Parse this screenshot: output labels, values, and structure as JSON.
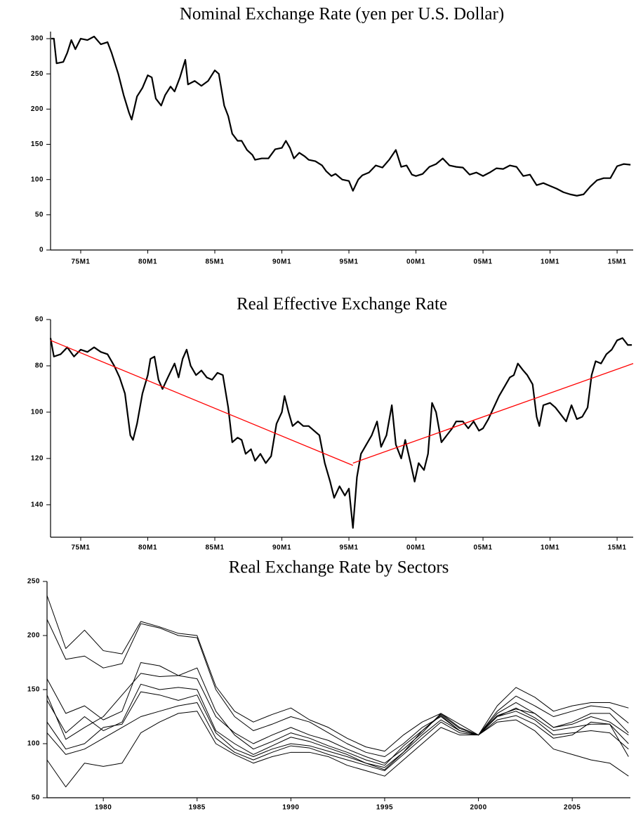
{
  "chart_data": [
    {
      "type": "line",
      "title": "Nominal Exchange Rate (yen per U.S. Dollar)",
      "color": "#000000",
      "x": [
        1972.8,
        1973.0,
        1973.2,
        1973.7,
        1974.0,
        1974.3,
        1974.6,
        1975.0,
        1975.5,
        1976.0,
        1976.5,
        1977.0,
        1977.3,
        1977.8,
        1978.2,
        1978.6,
        1978.8,
        1979.2,
        1979.6,
        1980.0,
        1980.3,
        1980.6,
        1981.0,
        1981.3,
        1981.7,
        1982.0,
        1982.4,
        1982.8,
        1983.0,
        1983.5,
        1984.0,
        1984.5,
        1985.0,
        1985.3,
        1985.7,
        1986.0,
        1986.3,
        1986.7,
        1987.0,
        1987.4,
        1987.8,
        1988.0,
        1988.5,
        1989.0,
        1989.5,
        1990.0,
        1990.3,
        1990.6,
        1990.9,
        1991.3,
        1991.7,
        1992.0,
        1992.5,
        1993.0,
        1993.3,
        1993.7,
        1994.0,
        1994.5,
        1995.0,
        1995.3,
        1995.7,
        1996.0,
        1996.5,
        1997.0,
        1997.5,
        1998.0,
        1998.5,
        1998.9,
        1999.3,
        1999.7,
        2000.0,
        2000.5,
        2001.0,
        2001.5,
        2002.0,
        2002.5,
        2003.0,
        2003.5,
        2004.0,
        2004.5,
        2005.0,
        2005.5,
        2006.0,
        2006.5,
        2007.0,
        2007.5,
        2008.0,
        2008.5,
        2009.0,
        2009.5,
        2010.0,
        2010.5,
        2011.0,
        2011.5,
        2012.0,
        2012.5,
        2013.0,
        2013.5,
        2014.0,
        2014.5,
        2015.0,
        2015.5,
        2016.0
      ],
      "values": [
        300,
        300,
        265,
        267,
        280,
        298,
        285,
        300,
        298,
        303,
        292,
        295,
        280,
        250,
        220,
        195,
        185,
        218,
        230,
        248,
        245,
        215,
        205,
        220,
        232,
        225,
        245,
        270,
        235,
        240,
        233,
        240,
        255,
        250,
        205,
        190,
        165,
        155,
        155,
        142,
        135,
        128,
        130,
        130,
        143,
        145,
        155,
        145,
        130,
        138,
        133,
        128,
        126,
        120,
        112,
        105,
        108,
        100,
        98,
        84,
        100,
        106,
        110,
        120,
        117,
        128,
        142,
        118,
        120,
        107,
        105,
        108,
        118,
        122,
        130,
        120,
        118,
        117,
        107,
        110,
        105,
        110,
        116,
        115,
        120,
        118,
        105,
        107,
        92,
        95,
        91,
        87,
        82,
        79,
        77,
        79,
        90,
        99,
        102,
        102,
        119,
        122,
        121
      ],
      "xlim": [
        1972.75,
        2016.2
      ],
      "xticks": [
        {
          "value": 1975,
          "label": "75M1"
        },
        {
          "value": 1980,
          "label": "80M1"
        },
        {
          "value": 1985,
          "label": "85M1"
        },
        {
          "value": 1990,
          "label": "90M1"
        },
        {
          "value": 1995,
          "label": "95M1"
        },
        {
          "value": 2000,
          "label": "00M1"
        },
        {
          "value": 2005,
          "label": "05M1"
        },
        {
          "value": 2010,
          "label": "10M1"
        },
        {
          "value": 2015,
          "label": "15M1"
        }
      ],
      "ylim": [
        0,
        310
      ],
      "yticks": [
        0,
        50,
        100,
        150,
        200,
        250,
        300
      ]
    },
    {
      "type": "line",
      "title": "Real Effective Exchange Rate",
      "y_inverted": true,
      "series": [
        {
          "color": "#000000",
          "x": [
            1972.75,
            1973.0,
            1973.5,
            1974.0,
            1974.5,
            1975.0,
            1975.5,
            1976.0,
            1976.5,
            1977.0,
            1977.5,
            1977.9,
            1978.3,
            1978.7,
            1978.9,
            1979.2,
            1979.6,
            1980.0,
            1980.2,
            1980.5,
            1980.8,
            1981.1,
            1981.5,
            1982.0,
            1982.3,
            1982.6,
            1982.9,
            1983.2,
            1983.6,
            1984.0,
            1984.4,
            1984.8,
            1985.2,
            1985.6,
            1986.0,
            1986.3,
            1986.7,
            1987.0,
            1987.3,
            1987.7,
            1988.0,
            1988.4,
            1988.8,
            1989.2,
            1989.6,
            1990.0,
            1990.2,
            1990.5,
            1990.8,
            1991.2,
            1991.6,
            1992.0,
            1992.4,
            1992.8,
            1993.2,
            1993.6,
            1993.9,
            1994.3,
            1994.7,
            1995.0,
            1995.3,
            1995.6,
            1995.9,
            1996.3,
            1996.7,
            1997.1,
            1997.4,
            1997.8,
            1998.2,
            1998.5,
            1998.9,
            1999.2,
            1999.6,
            1999.9,
            2000.2,
            2000.6,
            2000.9,
            2001.2,
            2001.5,
            2001.9,
            2002.3,
            2002.7,
            2003.0,
            2003.5,
            2003.9,
            2004.3,
            2004.7,
            2005.0,
            2005.4,
            2005.8,
            2006.2,
            2006.6,
            2007.0,
            2007.3,
            2007.6,
            2008.0,
            2008.3,
            2008.7,
            2009.0,
            2009.2,
            2009.5,
            2010.0,
            2010.4,
            2010.8,
            2011.2,
            2011.6,
            2012.0,
            2012.4,
            2012.8,
            2013.1,
            2013.4,
            2013.8,
            2014.2,
            2014.6,
            2015.0,
            2015.4,
            2015.8,
            2016.1
          ],
          "values": [
            68,
            76,
            75,
            72,
            76,
            73,
            74,
            72,
            74,
            75,
            80,
            85,
            92,
            110,
            112,
            105,
            92,
            84,
            77,
            76,
            86,
            90,
            85,
            79,
            85,
            77,
            73,
            80,
            84,
            82,
            85,
            86,
            83,
            84,
            98,
            113,
            111,
            112,
            118,
            116,
            121,
            118,
            122,
            119,
            105,
            100,
            93,
            100,
            106,
            104,
            106,
            106,
            108,
            110,
            122,
            130,
            137,
            132,
            136,
            133,
            150,
            128,
            118,
            114,
            110,
            104,
            115,
            110,
            97,
            114,
            120,
            112,
            122,
            130,
            122,
            125,
            118,
            96,
            100,
            113,
            110,
            107,
            104,
            104,
            107,
            104,
            108,
            107,
            103,
            98,
            93,
            89,
            85,
            84,
            79,
            82,
            84,
            88,
            102,
            106,
            97,
            96,
            98,
            101,
            104,
            97,
            103,
            102,
            98,
            84,
            78,
            79,
            75,
            73,
            69,
            68,
            71,
            71
          ]
        },
        {
          "color": "#ff0000",
          "x": [
            1972.75,
            1995.3
          ],
          "values": [
            69,
            123
          ]
        },
        {
          "color": "#ff0000",
          "x": [
            1995.3,
            2016.2
          ],
          "values": [
            122,
            79
          ]
        }
      ],
      "xlim": [
        1972.75,
        2016.2
      ],
      "xticks": [
        {
          "value": 1975,
          "label": "75M1"
        },
        {
          "value": 1980,
          "label": "80M1"
        },
        {
          "value": 1985,
          "label": "85M1"
        },
        {
          "value": 1990,
          "label": "90M1"
        },
        {
          "value": 1995,
          "label": "95M1"
        },
        {
          "value": 2000,
          "label": "00M1"
        },
        {
          "value": 2005,
          "label": "05M1"
        },
        {
          "value": 2010,
          "label": "10M1"
        },
        {
          "value": 2015,
          "label": "15M1"
        }
      ],
      "ylim": [
        60,
        154
      ],
      "yticks": [
        60,
        80,
        100,
        120,
        140
      ]
    },
    {
      "type": "line",
      "title": "Real Exchange Rate by Sectors",
      "x": [
        1977,
        1978,
        1979,
        1980,
        1981,
        1982,
        1983,
        1984,
        1985,
        1986,
        1987,
        1988,
        1989,
        1990,
        1991,
        1992,
        1993,
        1994,
        1995,
        1996,
        1997,
        1998,
        1999,
        2000,
        2001,
        2002,
        2003,
        2004,
        2005,
        2006,
        2007,
        2008
      ],
      "series": [
        {
          "color": "#000000",
          "values": [
            237,
            188,
            205,
            186,
            183,
            213,
            208,
            202,
            200,
            153,
            130,
            120,
            127,
            133,
            122,
            115,
            105,
            97,
            93,
            108,
            120,
            128,
            118,
            108,
            135,
            152,
            143,
            130,
            135,
            138,
            138,
            133
          ]
        },
        {
          "color": "#000000",
          "values": [
            215,
            178,
            181,
            170,
            174,
            211,
            207,
            200,
            198,
            150,
            125,
            112,
            118,
            125,
            120,
            110,
            100,
            92,
            88,
            100,
            115,
            125,
            112,
            108,
            130,
            144,
            135,
            125,
            130,
            135,
            133,
            119
          ]
        },
        {
          "color": "#000000",
          "values": [
            160,
            128,
            135,
            122,
            130,
            175,
            172,
            163,
            160,
            125,
            110,
            100,
            108,
            115,
            108,
            103,
            95,
            88,
            82,
            95,
            110,
            128,
            115,
            108,
            128,
            138,
            128,
            115,
            118,
            125,
            120,
            108
          ]
        },
        {
          "color": "#000000",
          "values": [
            145,
            104,
            115,
            125,
            145,
            165,
            162,
            163,
            170,
            130,
            108,
            95,
            102,
            110,
            105,
            98,
            92,
            85,
            80,
            98,
            112,
            127,
            114,
            108,
            125,
            133,
            124,
            112,
            115,
            118,
            118,
            100
          ]
        },
        {
          "color": "#000000",
          "values": [
            120,
            95,
            100,
            115,
            118,
            148,
            145,
            140,
            145,
            110,
            95,
            88,
            95,
            100,
            98,
            93,
            88,
            82,
            78,
            92,
            108,
            122,
            112,
            108,
            125,
            130,
            122,
            108,
            110,
            112,
            110,
            95
          ]
        },
        {
          "color": "#000000",
          "values": [
            110,
            90,
            95,
            105,
            115,
            125,
            130,
            135,
            138,
            105,
            92,
            85,
            92,
            98,
            96,
            90,
            85,
            80,
            75,
            90,
            105,
            120,
            110,
            108,
            122,
            126,
            118,
            105,
            108,
            120,
            118,
            88
          ]
        },
        {
          "color": "#000000",
          "values": [
            85,
            60,
            82,
            79,
            82,
            110,
            120,
            128,
            130,
            100,
            90,
            82,
            88,
            92,
            92,
            88,
            80,
            75,
            70,
            85,
            100,
            115,
            108,
            108,
            120,
            122,
            112,
            95,
            90,
            85,
            82,
            70
          ]
        },
        {
          "color": "#000000",
          "values": [
            140,
            110,
            125,
            112,
            120,
            155,
            150,
            152,
            150,
            112,
            100,
            90,
            98,
            106,
            102,
            96,
            90,
            82,
            76,
            92,
            112,
            126,
            112,
            108,
            126,
            132,
            128,
            115,
            120,
            128,
            128,
            110
          ]
        }
      ],
      "xlim": [
        1977,
        2008.1
      ],
      "xticks": [
        1980,
        1985,
        1990,
        1995,
        2000,
        2005
      ],
      "ylim": [
        50,
        250
      ],
      "yticks": [
        50,
        100,
        150,
        200,
        250
      ]
    }
  ]
}
